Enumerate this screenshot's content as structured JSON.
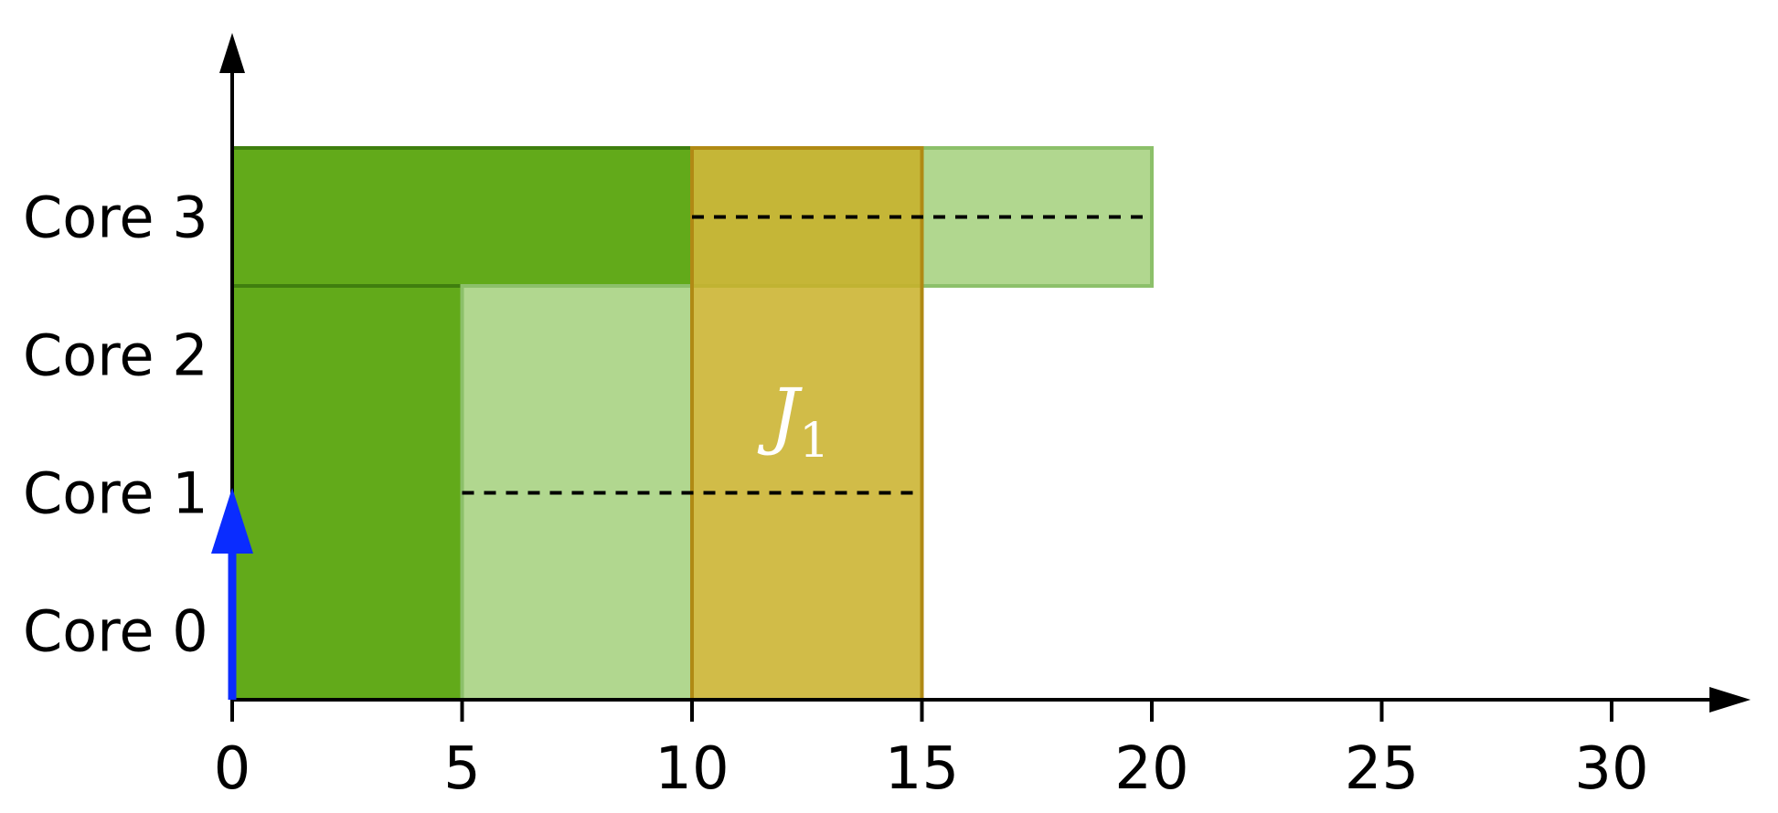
{
  "diagram": {
    "cores": [
      "Core 0",
      "Core 1",
      "Core 2",
      "Core 3"
    ],
    "x_ticks": [
      0,
      5,
      10,
      15,
      20,
      25,
      30
    ],
    "x_range": [
      0,
      33
    ],
    "job": {
      "name": "J",
      "subscript": "1"
    },
    "colors": {
      "dark_green": "#62aa1a",
      "dark_green_stroke": "#3f7f0e",
      "light_green": "#b1d78f",
      "light_green_stroke": "#8cc06a",
      "job_fill": "#c9b028",
      "job_stroke": "#b08a14",
      "release_arrow": "#0a2cff",
      "axis": "#000000"
    },
    "segments": [
      {
        "start": 0,
        "end": 10,
        "core_from": 3,
        "core_to": 3,
        "style": "dark"
      },
      {
        "start": 10,
        "end": 20,
        "core_from": 3,
        "core_to": 3,
        "style": "light"
      },
      {
        "start": 0,
        "end": 5,
        "core_from": 0,
        "core_to": 2,
        "style": "dark"
      },
      {
        "start": 5,
        "end": 10,
        "core_from": 0,
        "core_to": 2,
        "style": "light"
      },
      {
        "start": 10,
        "end": 15,
        "core_from": 0,
        "core_to": 3,
        "style": "job"
      }
    ],
    "dashed_lines": [
      {
        "start": 10,
        "end": 20,
        "core_from": 3,
        "core_to": 3
      },
      {
        "start": 5,
        "end": 15,
        "core_from": 0,
        "core_to": 2
      }
    ],
    "release": {
      "time": 0,
      "core_from": 0,
      "core_to": 2
    }
  }
}
